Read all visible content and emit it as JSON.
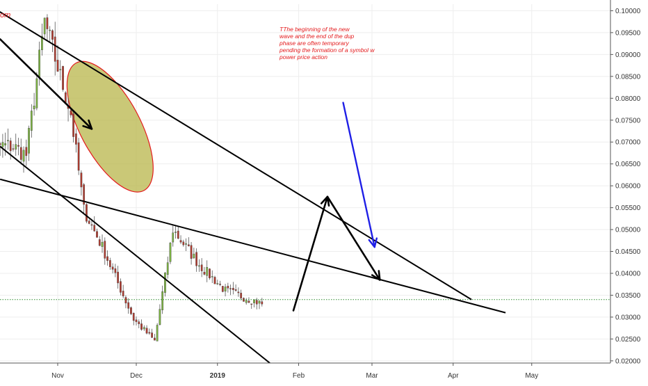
{
  "chart_data": {
    "type": "candlestick",
    "title": "",
    "colors": {
      "up": "#7cb342",
      "down": "#b03a2e",
      "trendline": "#000000",
      "blue_arrow": "#1f1fe6",
      "annotation_text": "#e31a1c",
      "ellipse_fill": "#b8b64a",
      "ellipse_stroke": "#e31a1c",
      "current_price_line": "#2e8b2e",
      "grid": "#eeeeee"
    },
    "y_axis": {
      "ylim": [
        0.0195,
        0.1015
      ],
      "ticks": [
        "0.10000",
        "0.09500",
        "0.09000",
        "0.08500",
        "0.08000",
        "0.07500",
        "0.07000",
        "0.06500",
        "0.06000",
        "0.05500",
        "0.05000",
        "0.04500",
        "0.04000",
        "0.03500",
        "0.03000",
        "0.02500",
        "0.02000"
      ]
    },
    "x_axis": {
      "tick_labels": [
        {
          "label": "Nov",
          "date": "2018-11-01",
          "bold": false
        },
        {
          "label": "Dec",
          "date": "2018-12-01",
          "bold": false
        },
        {
          "label": "2019",
          "date": "2019-01-01",
          "bold": true
        },
        {
          "label": "Feb",
          "date": "2019-02-01",
          "bold": false
        },
        {
          "label": "Mar",
          "date": "2019-03-01",
          "bold": false
        },
        {
          "label": "Apr",
          "date": "2019-04-01",
          "bold": false
        },
        {
          "label": "May",
          "date": "2019-05-01",
          "bold": false
        }
      ]
    },
    "current_price": 0.034,
    "annotation_lines": [
      "TThe beginning of the new",
      "wave and the end of the dup",
      "phase are often temporary",
      " pending the formation of a symbol w",
      " power price action"
    ],
    "logo_fragment": "om",
    "segments": [
      {
        "name": "close",
        "o": 0.0715,
        "c": 0.0695,
        "days": 3
      },
      {
        "name": "close",
        "o": 0.0695,
        "c": 0.069,
        "days": 12
      },
      {
        "name": "close",
        "o": 0.069,
        "c": 0.067,
        "days": 5
      },
      {
        "name": "pump",
        "o": 0.067,
        "c": 0.0975,
        "days": 7
      },
      {
        "name": "dump",
        "o": 0.0975,
        "c": 0.0765,
        "days": 10
      },
      {
        "name": "crash",
        "o": 0.0765,
        "c": 0.0545,
        "days": 5
      },
      {
        "name": "slide",
        "o": 0.0545,
        "c": 0.046,
        "days": 7
      },
      {
        "name": "slide",
        "o": 0.046,
        "c": 0.0295,
        "days": 12
      },
      {
        "name": "bottom",
        "o": 0.0295,
        "c": 0.0245,
        "days": 8
      },
      {
        "name": "bounce",
        "o": 0.0245,
        "c": 0.05,
        "days": 7
      },
      {
        "name": "fade",
        "o": 0.05,
        "c": 0.042,
        "days": 10
      },
      {
        "name": "fade",
        "o": 0.042,
        "c": 0.036,
        "days": 10
      },
      {
        "name": "fade",
        "o": 0.036,
        "c": 0.034,
        "days": 10
      },
      {
        "name": "fade",
        "o": 0.034,
        "c": 0.033,
        "days": 4
      }
    ],
    "drawings": {
      "trendlines": [
        {
          "p1": {
            "date": "2018-10-01",
            "price": 0.103
          },
          "p2": {
            "date": "2019-04-08",
            "price": 0.034
          }
        },
        {
          "p1": {
            "date": "2018-10-10",
            "price": 0.069
          },
          "p2": {
            "date": "2019-01-21",
            "price": 0.0195
          }
        },
        {
          "p1": {
            "date": "2018-10-10",
            "price": 0.0615
          },
          "p2": {
            "date": "2019-04-21",
            "price": 0.031
          }
        }
      ],
      "black_arrows": [
        {
          "from": {
            "date": "2018-10-10",
            "price": 0.0935
          },
          "to": {
            "date": "2018-11-14",
            "price": 0.073
          }
        },
        {
          "from": {
            "date": "2019-01-30",
            "price": 0.0315
          },
          "to": {
            "date": "2019-02-12",
            "price": 0.0575
          }
        },
        {
          "from": {
            "date": "2019-02-12",
            "price": 0.0575
          },
          "to": {
            "date": "2019-03-04",
            "price": 0.0385
          }
        }
      ],
      "blue_arrow": {
        "from": {
          "date": "2019-02-18",
          "price": 0.079
        },
        "to": {
          "date": "2019-03-02",
          "price": 0.046
        }
      },
      "ellipse": {
        "center": {
          "date": "2018-11-21",
          "price": 0.0735
        },
        "radius_days": 11.5,
        "radius_price": 0.0165,
        "rotation_deg": -28
      }
    }
  }
}
